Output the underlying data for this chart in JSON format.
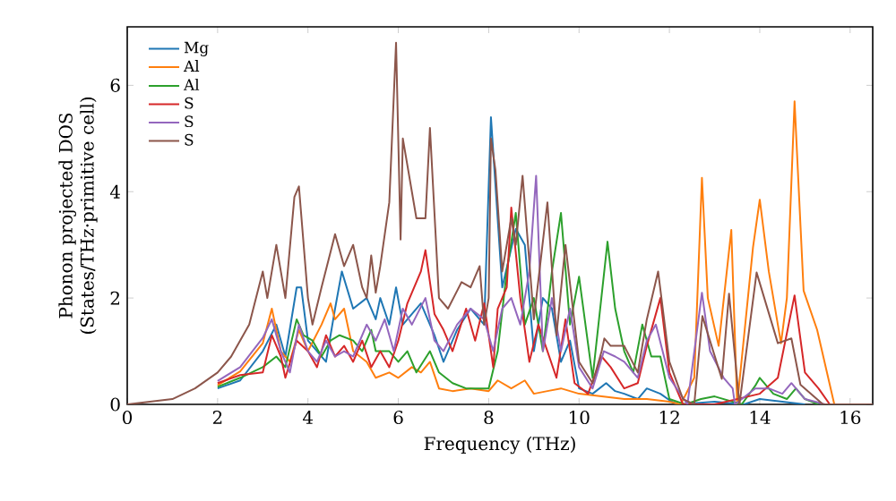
{
  "chart_data": {
    "type": "line",
    "xlabel": "Frequency (THz)",
    "ylabel": "Phonon projected DOS (States/THz·primitive cell)",
    "xlim": [
      0,
      16.5
    ],
    "ylim": [
      0,
      7.1
    ],
    "xticks": [
      0,
      2,
      4,
      6,
      8,
      10,
      12,
      14,
      16
    ],
    "yticks": [
      0,
      2,
      4,
      6
    ],
    "grid": false,
    "legend": "top left",
    "marker": "none",
    "line_style": "solid",
    "series": [
      {
        "name": "Mg",
        "color": "#1f77b4",
        "x": [
          2,
          2.5,
          3.0,
          3.3,
          3.5,
          3.75,
          3.85,
          4.0,
          4.4,
          4.6,
          4.75,
          5.0,
          5.3,
          5.5,
          5.6,
          5.8,
          5.95,
          6.1,
          6.5,
          6.8,
          7.0,
          7.3,
          7.6,
          7.9,
          8.05,
          8.3,
          8.6,
          8.8,
          9.0,
          9.2,
          9.4,
          9.6,
          9.8,
          10.0,
          10.3,
          10.6,
          10.8,
          11.0,
          11.3,
          11.5,
          11.8,
          12.05,
          12.2,
          13.0,
          13.65,
          14.0,
          14.5,
          15.0
        ],
        "values": [
          0.3,
          0.45,
          1.0,
          1.5,
          0.9,
          2.2,
          2.2,
          1.2,
          0.8,
          1.8,
          2.5,
          1.8,
          2.0,
          1.6,
          2.0,
          1.5,
          2.2,
          1.5,
          1.9,
          1.3,
          0.8,
          1.4,
          1.8,
          1.5,
          5.4,
          2.2,
          3.3,
          3.0,
          1.0,
          2.0,
          1.8,
          0.8,
          1.2,
          0.3,
          0.2,
          0.4,
          0.25,
          0.2,
          0.1,
          0.3,
          0.2,
          0.05,
          0,
          0.05,
          0,
          0.1,
          0.05,
          0
        ]
      },
      {
        "name": "Al",
        "color": "#ff7f0e",
        "x": [
          2,
          2.5,
          3.0,
          3.2,
          3.4,
          3.6,
          3.8,
          4.0,
          4.3,
          4.5,
          4.6,
          4.8,
          5.0,
          5.3,
          5.5,
          5.8,
          6.0,
          6.3,
          6.5,
          6.7,
          6.9,
          7.2,
          7.6,
          8.0,
          8.2,
          8.5,
          8.8,
          9.0,
          9.3,
          9.6,
          10.0,
          10.5,
          11.0,
          11.5,
          12.0,
          12.25,
          12.55,
          12.72,
          12.85,
          13.09,
          13.37,
          13.5,
          13.85,
          14.0,
          14.2,
          14.47,
          14.6,
          14.77,
          14.97,
          15.27,
          15.65
        ],
        "values": [
          0.36,
          0.62,
          1.15,
          1.8,
          1.0,
          0.8,
          1.4,
          1.0,
          1.5,
          1.9,
          1.6,
          1.8,
          1.0,
          0.8,
          0.5,
          0.6,
          0.5,
          0.7,
          0.6,
          0.8,
          0.3,
          0.25,
          0.3,
          0.25,
          0.45,
          0.3,
          0.45,
          0.2,
          0.25,
          0.3,
          0.2,
          0.15,
          0.1,
          0.1,
          0.05,
          0,
          0.5,
          4.26,
          2.0,
          1.1,
          3.28,
          0,
          2.95,
          3.85,
          2.5,
          1.15,
          2.0,
          5.7,
          2.14,
          1.4,
          0
        ]
      },
      {
        "name": "Al",
        "color": "#2ca02c",
        "x": [
          2,
          2.5,
          3.0,
          3.3,
          3.5,
          3.75,
          3.9,
          4.1,
          4.3,
          4.5,
          4.7,
          5.0,
          5.2,
          5.4,
          5.5,
          5.8,
          6.0,
          6.2,
          6.4,
          6.7,
          6.9,
          7.2,
          7.5,
          7.8,
          8.0,
          8.2,
          8.4,
          8.6,
          8.8,
          9.0,
          9.2,
          9.4,
          9.6,
          9.8,
          10.0,
          10.3,
          10.63,
          10.8,
          11.0,
          11.2,
          11.4,
          11.6,
          11.8,
          12.0,
          12.35,
          12.7,
          13.0,
          13.6,
          13.9,
          14.0,
          14.3,
          14.6,
          14.8,
          15.0,
          15.3
        ],
        "values": [
          0.33,
          0.5,
          0.7,
          0.9,
          0.7,
          1.6,
          1.3,
          1.2,
          0.9,
          1.2,
          1.3,
          1.2,
          1.0,
          1.4,
          1.0,
          1.0,
          0.8,
          1.0,
          0.6,
          1.0,
          0.6,
          0.4,
          0.3,
          0.3,
          0.3,
          1.0,
          2.5,
          3.6,
          1.5,
          2.0,
          1.0,
          2.5,
          3.6,
          1.5,
          2.4,
          0.5,
          3.06,
          1.8,
          1.0,
          0.6,
          1.5,
          0.9,
          0.9,
          0.1,
          0,
          0.1,
          0.15,
          0,
          0.35,
          0.5,
          0.2,
          0.1,
          0.3,
          0.1,
          0
        ]
      },
      {
        "name": "S",
        "color": "#d62728",
        "x": [
          2,
          2.5,
          3.0,
          3.2,
          3.4,
          3.5,
          3.75,
          4.0,
          4.2,
          4.4,
          4.6,
          4.8,
          5.0,
          5.2,
          5.4,
          5.6,
          5.8,
          6.0,
          6.2,
          6.5,
          6.6,
          6.8,
          7.0,
          7.2,
          7.5,
          7.7,
          7.9,
          8.1,
          8.2,
          8.4,
          8.5,
          8.7,
          8.9,
          9.1,
          9.3,
          9.5,
          9.7,
          9.9,
          10.2,
          10.5,
          10.7,
          11.0,
          11.3,
          11.5,
          11.8,
          12.0,
          12.3,
          13.0,
          13.5,
          14.0,
          14.4,
          14.77,
          15.0,
          15.3,
          15.55
        ],
        "values": [
          0.4,
          0.55,
          0.6,
          1.3,
          0.9,
          0.5,
          1.2,
          1.0,
          0.7,
          1.3,
          0.9,
          1.1,
          0.8,
          1.2,
          0.7,
          1.0,
          0.7,
          1.2,
          1.9,
          2.5,
          2.9,
          1.7,
          1.4,
          1.0,
          1.8,
          1.2,
          1.9,
          0.7,
          1.8,
          2.2,
          3.7,
          2.0,
          0.8,
          1.5,
          1.0,
          0.5,
          1.6,
          0.4,
          0.2,
          0.9,
          0.7,
          0.3,
          0.4,
          1.1,
          2.0,
          0.6,
          0,
          0,
          0.1,
          0.2,
          0.5,
          2.05,
          0.6,
          0.3,
          0
        ]
      },
      {
        "name": "S",
        "color": "#9467bd",
        "x": [
          2,
          2.5,
          3.0,
          3.2,
          3.4,
          3.6,
          3.8,
          4.0,
          4.2,
          4.4,
          4.6,
          4.8,
          5.0,
          5.3,
          5.5,
          5.7,
          5.9,
          6.1,
          6.3,
          6.6,
          6.8,
          7.0,
          7.3,
          7.6,
          7.9,
          8.1,
          8.3,
          8.5,
          8.7,
          8.9,
          9.05,
          9.2,
          9.4,
          9.6,
          9.8,
          10.0,
          10.3,
          10.55,
          10.8,
          11.0,
          11.3,
          11.5,
          11.7,
          12.0,
          12.4,
          12.72,
          12.9,
          13.2,
          13.4,
          13.45,
          13.9,
          14.2,
          14.5,
          14.7,
          15.0,
          15.45
        ],
        "values": [
          0.44,
          0.7,
          1.25,
          1.6,
          1.0,
          0.6,
          1.5,
          1.0,
          0.8,
          1.2,
          0.9,
          1.0,
          0.9,
          1.5,
          1.2,
          1.6,
          1.0,
          1.8,
          1.5,
          2.0,
          1.2,
          1.0,
          1.5,
          1.8,
          1.6,
          1.0,
          1.8,
          2.0,
          1.5,
          2.5,
          4.3,
          1.0,
          2.0,
          1.0,
          1.8,
          0.7,
          0.3,
          1.0,
          0.9,
          0.8,
          0.5,
          1.2,
          1.5,
          0.5,
          0,
          2.1,
          1.0,
          0.5,
          0.3,
          0,
          0.3,
          0.3,
          0.2,
          0.4,
          0.1,
          0
        ]
      },
      {
        "name": "S",
        "color": "#8c564b",
        "x": [
          0,
          1,
          1.5,
          2,
          2.3,
          2.7,
          3.0,
          3.1,
          3.3,
          3.5,
          3.7,
          3.8,
          4.0,
          4.1,
          4.3,
          4.6,
          4.8,
          5.0,
          5.2,
          5.3,
          5.4,
          5.5,
          5.6,
          5.8,
          5.95,
          6.05,
          6.1,
          6.3,
          6.4,
          6.6,
          6.7,
          6.9,
          7.1,
          7.4,
          7.6,
          7.8,
          7.9,
          8.0,
          8.05,
          8.15,
          8.3,
          8.5,
          8.6,
          8.75,
          9.0,
          9.3,
          9.5,
          9.7,
          10.0,
          10.3,
          10.5,
          10.56,
          10.7,
          11.0,
          11.3,
          11.5,
          11.75,
          12.0,
          12.3,
          12.55,
          12.73,
          13.16,
          13.32,
          13.55,
          13.93,
          14.4,
          14.7,
          14.9,
          15.4,
          16.5
        ],
        "values": [
          0,
          0.1,
          0.3,
          0.6,
          0.9,
          1.5,
          2.5,
          2.0,
          3.0,
          2.0,
          3.9,
          4.1,
          2.0,
          1.5,
          2.2,
          3.2,
          2.6,
          3.0,
          2.2,
          2.0,
          2.8,
          2.1,
          2.6,
          3.8,
          6.8,
          3.1,
          5.0,
          4.0,
          3.5,
          3.5,
          5.2,
          2.0,
          1.8,
          2.3,
          2.2,
          2.6,
          1.5,
          2.0,
          5.0,
          4.4,
          2.5,
          3.5,
          3.0,
          4.3,
          1.6,
          3.8,
          1.3,
          3.0,
          0.8,
          0.4,
          1.0,
          1.24,
          1.1,
          1.1,
          0.6,
          1.6,
          2.5,
          0.8,
          0.1,
          0,
          1.66,
          0.48,
          2.08,
          0,
          2.48,
          1.15,
          1.24,
          0.37,
          0,
          0
        ]
      }
    ]
  }
}
